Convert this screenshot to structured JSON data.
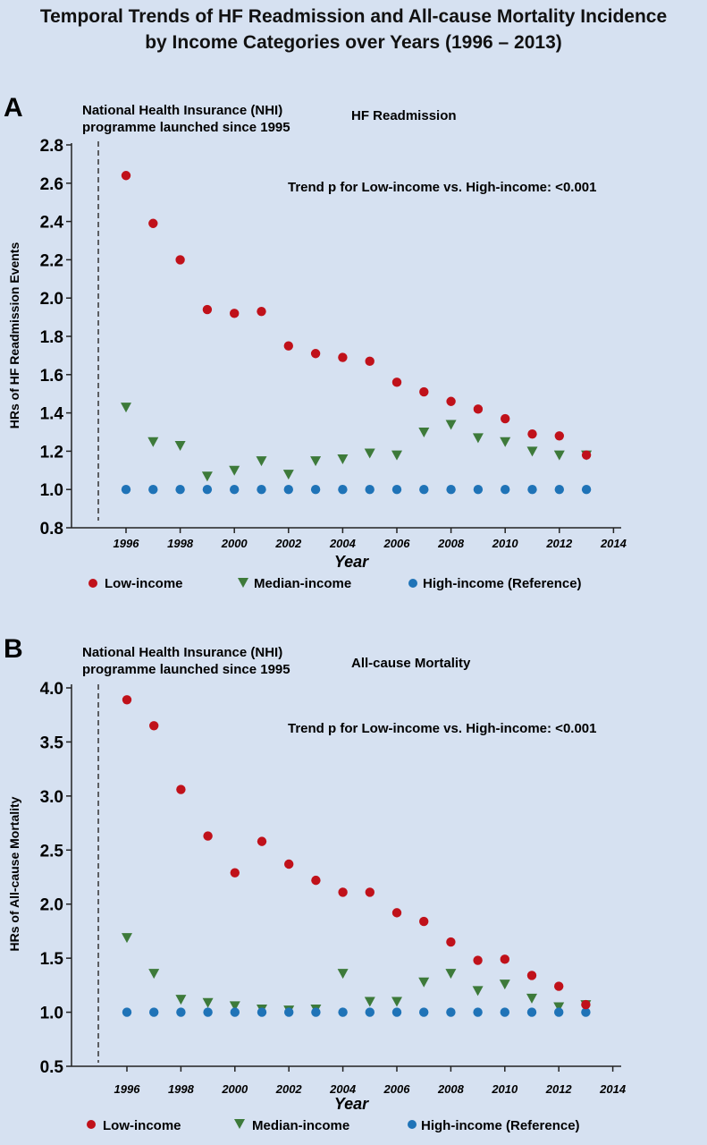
{
  "title": {
    "line1": "Temporal Trends of HF Readmission and All-cause Mortality Incidence",
    "line2": "by Income Categories over Years (1996 – 2013)"
  },
  "colors": {
    "low": "#c0111a",
    "median": "#3d7a3a",
    "high": "#1f73b7",
    "background": "#d6e1f1"
  },
  "chart_data": [
    {
      "type": "scatter",
      "panel_label": "A",
      "title": "HF Readmission",
      "annotation_line1": "National Health Insurance (NHI)",
      "annotation_line2": "programme launched since 1995",
      "trend_text": "Trend p for Low-income vs. High-income: <0.001",
      "xlabel": "Year",
      "ylabel": "HRs of HF Readmission Events",
      "xlim": [
        1994,
        2014
      ],
      "ylim": [
        0.8,
        2.8
      ],
      "y_ticks": [
        "0.8",
        "1.0",
        "1.2",
        "1.4",
        "1.6",
        "1.8",
        "2.0",
        "2.2",
        "2.4",
        "2.6",
        "2.8"
      ],
      "x_ticks": [
        "1996",
        "1998",
        "2000",
        "2002",
        "2004",
        "2006",
        "2008",
        "2010",
        "2012",
        "2014"
      ],
      "vline_x": 1995,
      "x": [
        1996,
        1997,
        1998,
        1999,
        2000,
        2001,
        2002,
        2003,
        2004,
        2005,
        2006,
        2007,
        2008,
        2009,
        2010,
        2011,
        2012,
        2013
      ],
      "series": [
        {
          "name": "Low-income",
          "marker": "circle",
          "values": [
            2.64,
            2.39,
            2.2,
            1.94,
            1.92,
            1.93,
            1.75,
            1.71,
            1.69,
            1.67,
            1.56,
            1.51,
            1.46,
            1.42,
            1.37,
            1.29,
            1.28,
            1.18
          ]
        },
        {
          "name": "Median-income",
          "marker": "triangle",
          "values": [
            1.43,
            1.25,
            1.23,
            1.07,
            1.1,
            1.15,
            1.08,
            1.15,
            1.16,
            1.19,
            1.18,
            1.3,
            1.34,
            1.27,
            1.25,
            1.2,
            1.18,
            1.18
          ]
        },
        {
          "name": "High-income",
          "marker": "circle",
          "values": [
            1.0,
            1.0,
            1.0,
            1.0,
            1.0,
            1.0,
            1.0,
            1.0,
            1.0,
            1.0,
            1.0,
            1.0,
            1.0,
            1.0,
            1.0,
            1.0,
            1.0,
            1.0
          ]
        }
      ],
      "legend": [
        "Low-income",
        "Median-income",
        "High-income (Reference)"
      ]
    },
    {
      "type": "scatter",
      "panel_label": "B",
      "title": "All-cause Mortality",
      "annotation_line1": "National Health Insurance (NHI)",
      "annotation_line2": "programme launched since 1995",
      "trend_text": "Trend p for Low-income vs. High-income: <0.001",
      "xlabel": "Year",
      "ylabel": "HRs of All-cause Mortality",
      "xlim": [
        1994,
        2014
      ],
      "ylim": [
        0.5,
        4.0
      ],
      "y_ticks": [
        "0.5",
        "1.0",
        "1.5",
        "2.0",
        "2.5",
        "3.0",
        "3.5",
        "4.0"
      ],
      "x_ticks": [
        "1996",
        "1998",
        "2000",
        "2002",
        "2004",
        "2006",
        "2008",
        "2010",
        "2012",
        "2014"
      ],
      "vline_x": 1995,
      "x": [
        1996,
        1997,
        1998,
        1999,
        2000,
        2001,
        2002,
        2003,
        2004,
        2005,
        2006,
        2007,
        2008,
        2009,
        2010,
        2011,
        2012,
        2013
      ],
      "series": [
        {
          "name": "Low-income",
          "marker": "circle",
          "values": [
            3.89,
            3.65,
            3.06,
            2.63,
            2.29,
            2.58,
            2.37,
            2.22,
            2.11,
            2.11,
            1.92,
            1.84,
            1.65,
            1.48,
            1.49,
            1.34,
            1.24,
            1.07
          ]
        },
        {
          "name": "Median-income",
          "marker": "triangle",
          "values": [
            1.69,
            1.36,
            1.12,
            1.09,
            1.06,
            1.03,
            1.02,
            1.03,
            1.36,
            1.1,
            1.1,
            1.28,
            1.36,
            1.2,
            1.26,
            1.13,
            1.05,
            1.07
          ]
        },
        {
          "name": "High-income",
          "marker": "circle",
          "values": [
            1.0,
            1.0,
            1.0,
            1.0,
            1.0,
            1.0,
            1.0,
            1.0,
            1.0,
            1.0,
            1.0,
            1.0,
            1.0,
            1.0,
            1.0,
            1.0,
            1.0,
            1.0
          ]
        }
      ],
      "legend": [
        "Low-income",
        "Median-income",
        "High-income (Reference)"
      ]
    }
  ]
}
